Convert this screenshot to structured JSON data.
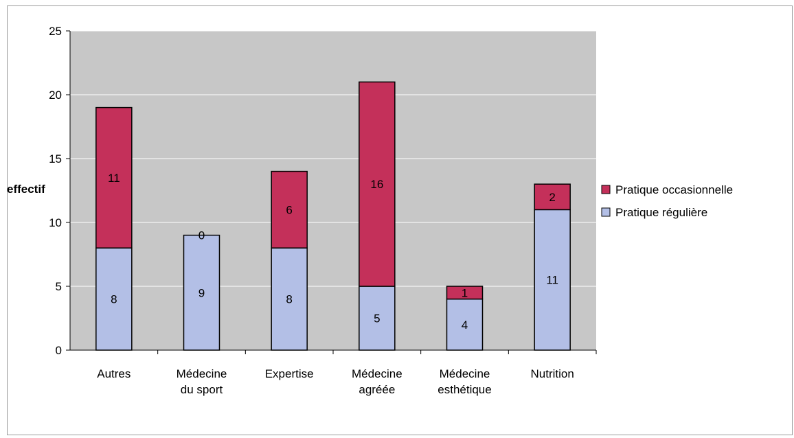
{
  "chart_data": {
    "type": "bar",
    "stacked": true,
    "title": "",
    "xlabel": "",
    "ylabel": "effectif",
    "ylim": [
      0,
      25
    ],
    "yticks": [
      0,
      5,
      10,
      15,
      20,
      25
    ],
    "grid": true,
    "legend_position": "right",
    "categories": [
      [
        "Autres"
      ],
      [
        "Médecine",
        "du sport"
      ],
      [
        "Expertise"
      ],
      [
        "Médecine",
        "agréée"
      ],
      [
        "Médecine",
        "esthétique"
      ],
      [
        "Nutrition"
      ]
    ],
    "series": [
      {
        "name": "Pratique régulière",
        "color": "#b3bfe6",
        "values": [
          8,
          9,
          8,
          5,
          4,
          11
        ]
      },
      {
        "name": "Pratique occasionnelle",
        "color": "#c4305a",
        "values": [
          11,
          0,
          6,
          16,
          1,
          2
        ]
      }
    ],
    "legend_order": [
      "Pratique occasionnelle",
      "Pratique régulière"
    ],
    "plot_background": "#c7c7c7",
    "gridline_color": "#ffffff"
  }
}
